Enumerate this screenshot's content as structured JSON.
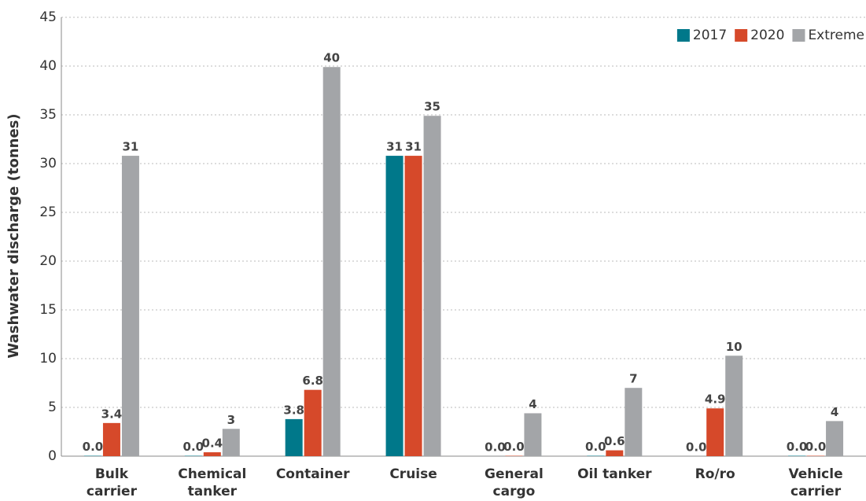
{
  "chart_data": {
    "type": "bar",
    "y_label": "Washwater discharge (tonnes)",
    "categories": [
      "Bulk\ncarrier",
      "Chemical\ntanker",
      "Container",
      "Cruise",
      "General\ncargo",
      "Oil tanker",
      "Ro/ro",
      "Vehicle\ncarrier"
    ],
    "series": [
      {
        "name": "2017",
        "color": "#00788a",
        "values": [
          0.04,
          0.04,
          3.8,
          30.8,
          0,
          0.04,
          0,
          0.04
        ],
        "value_labels": [
          "0.0",
          "0.0",
          "3.8",
          "31",
          "0.0",
          "0.0",
          "0.0",
          "0.0"
        ]
      },
      {
        "name": "2020",
        "color": "#d6492a",
        "values": [
          3.4,
          0.4,
          6.8,
          30.8,
          0.04,
          0.6,
          4.9,
          0.04
        ],
        "value_labels": [
          "3.4",
          "0.4",
          "6.8",
          "31",
          "0.0",
          "0.6",
          "4.9",
          "0.0"
        ]
      },
      {
        "name": "Extreme",
        "color": "#a3a5a8",
        "values": [
          30.8,
          2.8,
          39.9,
          34.9,
          4.4,
          7,
          10.3,
          3.6
        ],
        "value_labels": [
          "31",
          "3",
          "40",
          "35",
          "4",
          "7",
          "10",
          "4"
        ]
      }
    ],
    "ylim": [
      0,
      45
    ],
    "yticks": [
      0,
      5,
      10,
      15,
      20,
      25,
      30,
      35,
      40,
      45
    ],
    "grid": true,
    "legend": "top-right"
  }
}
